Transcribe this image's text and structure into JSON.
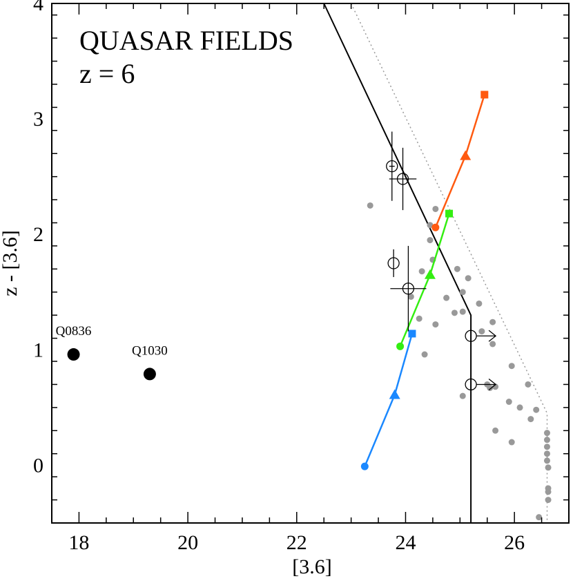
{
  "chart_data": {
    "type": "scatter",
    "title": "QUASAR FIELDS",
    "subtitle": "z = 6",
    "xlabel": "[3.6]",
    "ylabel": "z - [3.6]",
    "xlim": [
      17.5,
      27.0
    ],
    "ylim": [
      -0.5,
      4.0
    ],
    "xticks": [
      18,
      20,
      22,
      24,
      26
    ],
    "yticks": [
      0,
      1,
      2,
      3,
      4
    ],
    "colors": {
      "grey": "#999999",
      "orange": "#ff5a10",
      "green": "#33ee11",
      "blue": "#1a88ff",
      "black": "#000000"
    },
    "quasars": [
      {
        "name": "Q0836",
        "x": 17.9,
        "y": 0.96
      },
      {
        "name": "Q1030",
        "x": 19.3,
        "y": 0.79
      }
    ],
    "selection_cut": [
      [
        22.5,
        4.0
      ],
      [
        25.2,
        1.3
      ],
      [
        25.2,
        -0.5
      ]
    ],
    "limit_line": [
      [
        23.0,
        4.0
      ],
      [
        26.6,
        0.45
      ],
      [
        26.6,
        -0.5
      ]
    ],
    "tracks": [
      {
        "name": "orange",
        "color_key": "orange",
        "points": [
          {
            "x": 24.55,
            "y": 2.06,
            "marker": "circle"
          },
          {
            "x": 25.1,
            "y": 2.68,
            "marker": "triangle"
          },
          {
            "x": 25.45,
            "y": 3.21,
            "marker": "square"
          }
        ]
      },
      {
        "name": "green",
        "color_key": "green",
        "points": [
          {
            "x": 23.9,
            "y": 1.03,
            "marker": "circle"
          },
          {
            "x": 24.45,
            "y": 1.65,
            "marker": "triangle"
          },
          {
            "x": 24.8,
            "y": 2.18,
            "marker": "square"
          }
        ]
      },
      {
        "name": "blue",
        "color_key": "blue",
        "points": [
          {
            "x": 23.25,
            "y": -0.01,
            "marker": "circle"
          },
          {
            "x": 23.8,
            "y": 0.61,
            "marker": "triangle"
          },
          {
            "x": 24.12,
            "y": 1.14,
            "marker": "square"
          }
        ]
      }
    ],
    "candidates": [
      {
        "x": 23.75,
        "y": 2.59,
        "xerr": 0.05,
        "yerr": 0.3
      },
      {
        "x": 23.95,
        "y": 2.48,
        "xerr": 0.25,
        "yerr": 0.27
      },
      {
        "x": 23.78,
        "y": 1.75,
        "xerr": 0.0,
        "yerr": 0.12
      },
      {
        "x": 24.05,
        "y": 1.53,
        "xerr": 0.33,
        "yerr": 0.37
      },
      {
        "x": 25.2,
        "y": 1.12,
        "arrow": true
      },
      {
        "x": 25.2,
        "y": 0.7,
        "arrow": true
      }
    ],
    "field_sources": [
      [
        23.35,
        2.25
      ],
      [
        24.55,
        2.22
      ],
      [
        24.45,
        2.08
      ],
      [
        24.45,
        1.95
      ],
      [
        24.5,
        1.78
      ],
      [
        24.3,
        1.68
      ],
      [
        24.95,
        1.7
      ],
      [
        25.15,
        1.62
      ],
      [
        25.05,
        1.5
      ],
      [
        24.1,
        1.46
      ],
      [
        24.75,
        1.45
      ],
      [
        25.35,
        1.4
      ],
      [
        25.6,
        1.24
      ],
      [
        24.9,
        1.32
      ],
      [
        25.05,
        1.33
      ],
      [
        24.25,
        1.27
      ],
      [
        24.55,
        1.22
      ],
      [
        25.4,
        1.16
      ],
      [
        25.6,
        1.05
      ],
      [
        25.95,
        0.86
      ],
      [
        24.35,
        0.96
      ],
      [
        25.5,
        0.7
      ],
      [
        25.55,
        0.67
      ],
      [
        25.65,
        0.68
      ],
      [
        26.25,
        0.7
      ],
      [
        25.05,
        0.6
      ],
      [
        25.9,
        0.55
      ],
      [
        26.1,
        0.5
      ],
      [
        26.4,
        0.48
      ],
      [
        26.3,
        0.4
      ],
      [
        25.65,
        0.3
      ],
      [
        25.95,
        0.2
      ],
      [
        26.6,
        0.28
      ],
      [
        26.6,
        0.22
      ],
      [
        26.6,
        0.16
      ],
      [
        26.6,
        0.1
      ],
      [
        26.6,
        0.04
      ],
      [
        26.62,
        -0.02
      ],
      [
        26.62,
        -0.2
      ],
      [
        26.62,
        -0.23
      ],
      [
        26.62,
        -0.3
      ],
      [
        26.45,
        -0.45
      ]
    ]
  }
}
